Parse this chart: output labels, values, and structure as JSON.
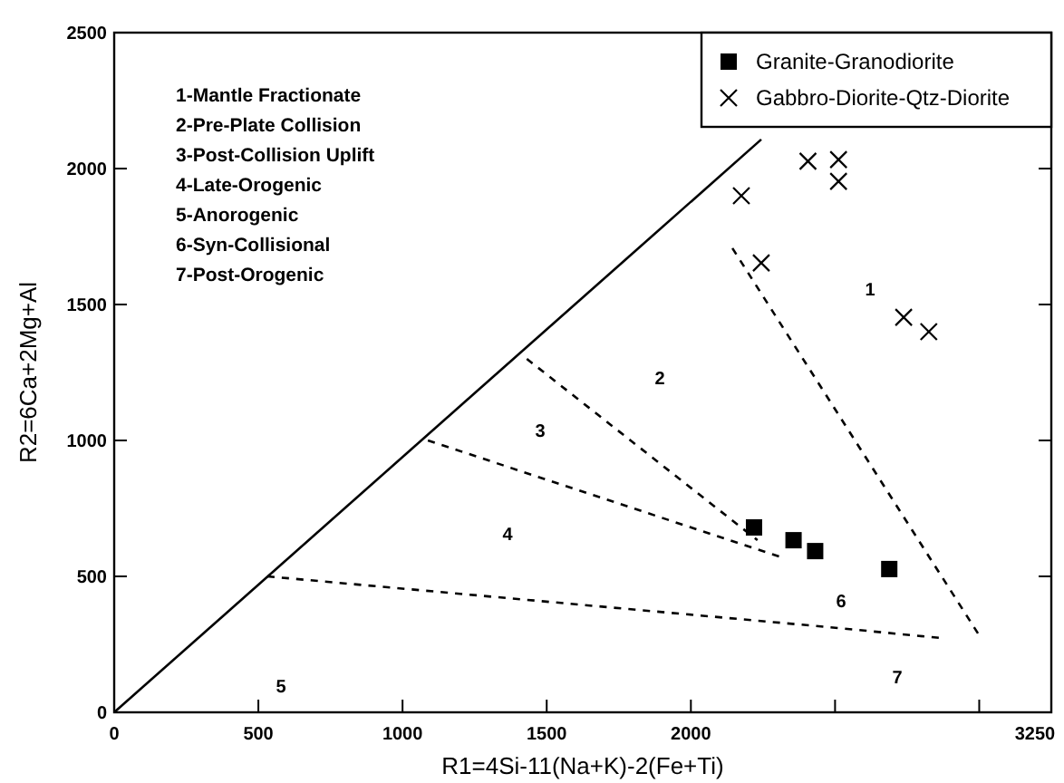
{
  "chart_data": {
    "type": "scatter",
    "xlabel": "R1=4Si-11(Na+K)-2(Fe+Ti)",
    "ylabel": "R2=6Ca+2Mg+Al",
    "xlim": [
      0,
      3250
    ],
    "ylim": [
      0,
      2500
    ],
    "xticks": [
      0,
      500,
      1000,
      1500,
      2000,
      {
        "value": 2500,
        "label": null
      },
      {
        "value": 3000,
        "label": null
      },
      3250
    ],
    "yticks": [
      0,
      500,
      1000,
      1500,
      2000,
      2500
    ],
    "grid": false,
    "legend": "top right",
    "series": [
      {
        "name": "Granite-Granodiorite",
        "marker": "square",
        "color": "#000000",
        "x": [
          2219,
          2356,
          2431,
          2688
        ],
        "values": [
          680,
          633,
          593,
          527
        ]
      },
      {
        "name": "Gabbro-Diorite-Qtz-Diorite",
        "marker": "cross",
        "color": "#000000",
        "x": [
          2175,
          2406,
          2512,
          2512,
          2244,
          2738,
          2825
        ],
        "values": [
          1900,
          2027,
          2033,
          1953,
          1653,
          1453,
          1400
        ]
      },
      {
        "type": "line",
        "marker": "none",
        "line_style": "solid",
        "color": "#000000",
        "x": [
          0,
          2244
        ],
        "values": [
          0,
          2107
        ]
      },
      {
        "type": "line",
        "marker": "none",
        "line_style": "dashed",
        "color": "#000000",
        "x": [
          2144,
          3006
        ],
        "values": [
          1707,
          273
        ]
      },
      {
        "type": "line",
        "marker": "none",
        "line_style": "dashed",
        "color": "#000000",
        "x": [
          1431,
          2231
        ],
        "values": [
          1300,
          633
        ]
      },
      {
        "type": "line",
        "marker": "none",
        "line_style": "dashed",
        "color": "#000000",
        "x": [
          1088,
          2306
        ],
        "values": [
          1000,
          573
        ]
      },
      {
        "type": "line",
        "marker": "none",
        "line_style": "dashed",
        "color": "#000000",
        "x": [
          531,
          2481,
          2869
        ],
        "values": [
          500,
          313,
          273
        ]
      }
    ],
    "annotations": [
      "1-Mantle Fractionate",
      "2-Pre-Plate Collision",
      "3-Post-Collision Uplift",
      "4-Late-Orogenic",
      "5-Anorogenic",
      "6-Syn-Collisional",
      "7-Post-Orogenic",
      "1",
      "2",
      "3",
      "4",
      "5",
      "6",
      "7"
    ]
  }
}
